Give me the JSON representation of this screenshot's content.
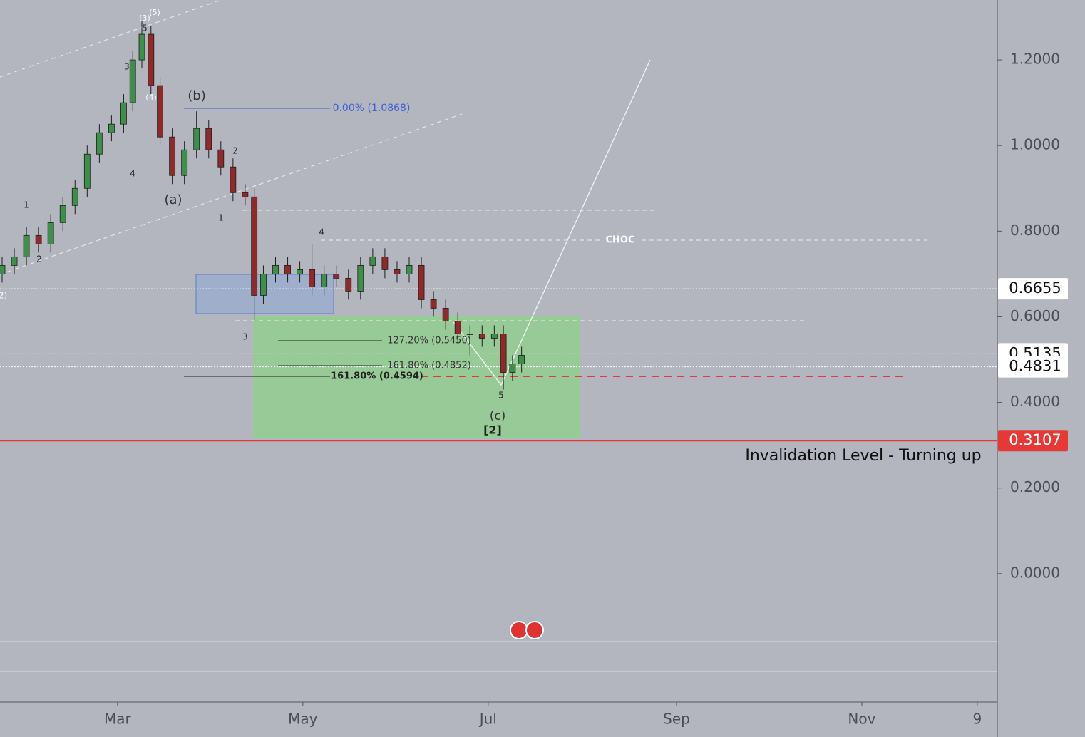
{
  "chart_data": {
    "type": "candlestick",
    "x": [
      -38,
      -34,
      -30,
      -26,
      -22,
      -18,
      -14,
      -10,
      -6,
      -2,
      2,
      5,
      8,
      11,
      14,
      18,
      22,
      26,
      30,
      34,
      38,
      42,
      45,
      48,
      52,
      56,
      60,
      64,
      68,
      72,
      76,
      80,
      84,
      88,
      92,
      96,
      100,
      104,
      108,
      112,
      116,
      120,
      124,
      127,
      130,
      133
    ],
    "open": [
      0.7,
      0.72,
      0.74,
      0.79,
      0.77,
      0.82,
      0.86,
      0.9,
      0.98,
      1.03,
      1.05,
      1.1,
      1.2,
      1.26,
      1.14,
      1.02,
      0.93,
      0.99,
      1.04,
      0.99,
      0.95,
      0.89,
      0.88,
      0.65,
      0.7,
      0.72,
      0.7,
      0.71,
      0.67,
      0.7,
      0.69,
      0.66,
      0.72,
      0.74,
      0.71,
      0.7,
      0.72,
      0.64,
      0.62,
      0.59,
      0.56,
      0.56,
      0.55,
      0.56,
      0.47,
      0.49
    ],
    "high": [
      0.74,
      0.76,
      0.81,
      0.81,
      0.84,
      0.88,
      0.92,
      1.0,
      1.05,
      1.07,
      1.12,
      1.22,
      1.29,
      1.28,
      1.16,
      1.04,
      1.01,
      1.08,
      1.06,
      1.01,
      0.97,
      0.91,
      0.9,
      0.72,
      0.74,
      0.74,
      0.73,
      0.77,
      0.72,
      0.72,
      0.71,
      0.74,
      0.76,
      0.76,
      0.73,
      0.74,
      0.74,
      0.66,
      0.64,
      0.61,
      0.58,
      0.58,
      0.58,
      0.58,
      0.51,
      0.53
    ],
    "low": [
      0.68,
      0.7,
      0.72,
      0.75,
      0.75,
      0.8,
      0.84,
      0.88,
      0.96,
      1.01,
      1.03,
      1.08,
      1.18,
      1.12,
      1.0,
      0.91,
      0.91,
      0.97,
      0.97,
      0.93,
      0.87,
      0.86,
      0.59,
      0.63,
      0.68,
      0.68,
      0.68,
      0.65,
      0.65,
      0.67,
      0.64,
      0.64,
      0.7,
      0.69,
      0.68,
      0.68,
      0.62,
      0.6,
      0.57,
      0.54,
      0.51,
      0.53,
      0.53,
      0.43,
      0.45,
      0.47
    ],
    "close": [
      0.72,
      0.74,
      0.79,
      0.77,
      0.82,
      0.86,
      0.9,
      0.98,
      1.03,
      1.05,
      1.1,
      1.2,
      1.26,
      1.14,
      1.02,
      0.93,
      0.99,
      1.04,
      0.99,
      0.95,
      0.89,
      0.88,
      0.65,
      0.7,
      0.72,
      0.7,
      0.71,
      0.67,
      0.7,
      0.69,
      0.66,
      0.72,
      0.74,
      0.71,
      0.7,
      0.72,
      0.64,
      0.62,
      0.59,
      0.56,
      0.56,
      0.55,
      0.56,
      0.47,
      0.49,
      0.51
    ],
    "up_color": "#3f8f4a",
    "down_color": "#8e2a2a",
    "xlim": [
      -38.7,
      289.6
    ],
    "xticks": [
      {
        "value": 0,
        "label": "Mar"
      },
      {
        "value": 61,
        "label": "May"
      },
      {
        "value": 122,
        "label": "Jul"
      },
      {
        "value": 184,
        "label": "Sep"
      },
      {
        "value": 245,
        "label": "Nov"
      },
      {
        "value": 283,
        "label": "9"
      }
    ],
    "ylim": [
      -0.3,
      1.34
    ],
    "yticks": [
      {
        "value": 0,
        "label": "0.0000"
      },
      {
        "value": 0.2,
        "label": "0.2000"
      },
      {
        "value": 0.4,
        "label": "0.4000"
      },
      {
        "value": 0.6,
        "label": "0.6000"
      },
      {
        "value": 0.8,
        "label": "0.8000"
      },
      {
        "value": 1.0,
        "label": "1.0000"
      },
      {
        "value": 1.2,
        "label": "1.2000"
      }
    ],
    "levels": [
      {
        "value": 0.6655,
        "color": "#ffffff"
      },
      {
        "value": 0.5135,
        "color": "#ffffff"
      },
      {
        "value": 0.4831,
        "color": "#ffffff"
      },
      {
        "value": 0.3107,
        "color": "#e53935"
      }
    ],
    "annotations": [
      "(3)",
      "(5)",
      "5",
      "3",
      "(4)",
      "4",
      "(b)",
      "(a)",
      "1",
      "2",
      "2",
      "1",
      "3",
      "4",
      "5",
      "(c)",
      "[2]",
      "CHOC",
      "0.00% (1.0868)",
      "127.20% (0.5450)",
      "161.80% (0.4852)",
      "161.80% (0.4594)",
      "Invalidation Level - Turning up",
      "2)"
    ]
  }
}
